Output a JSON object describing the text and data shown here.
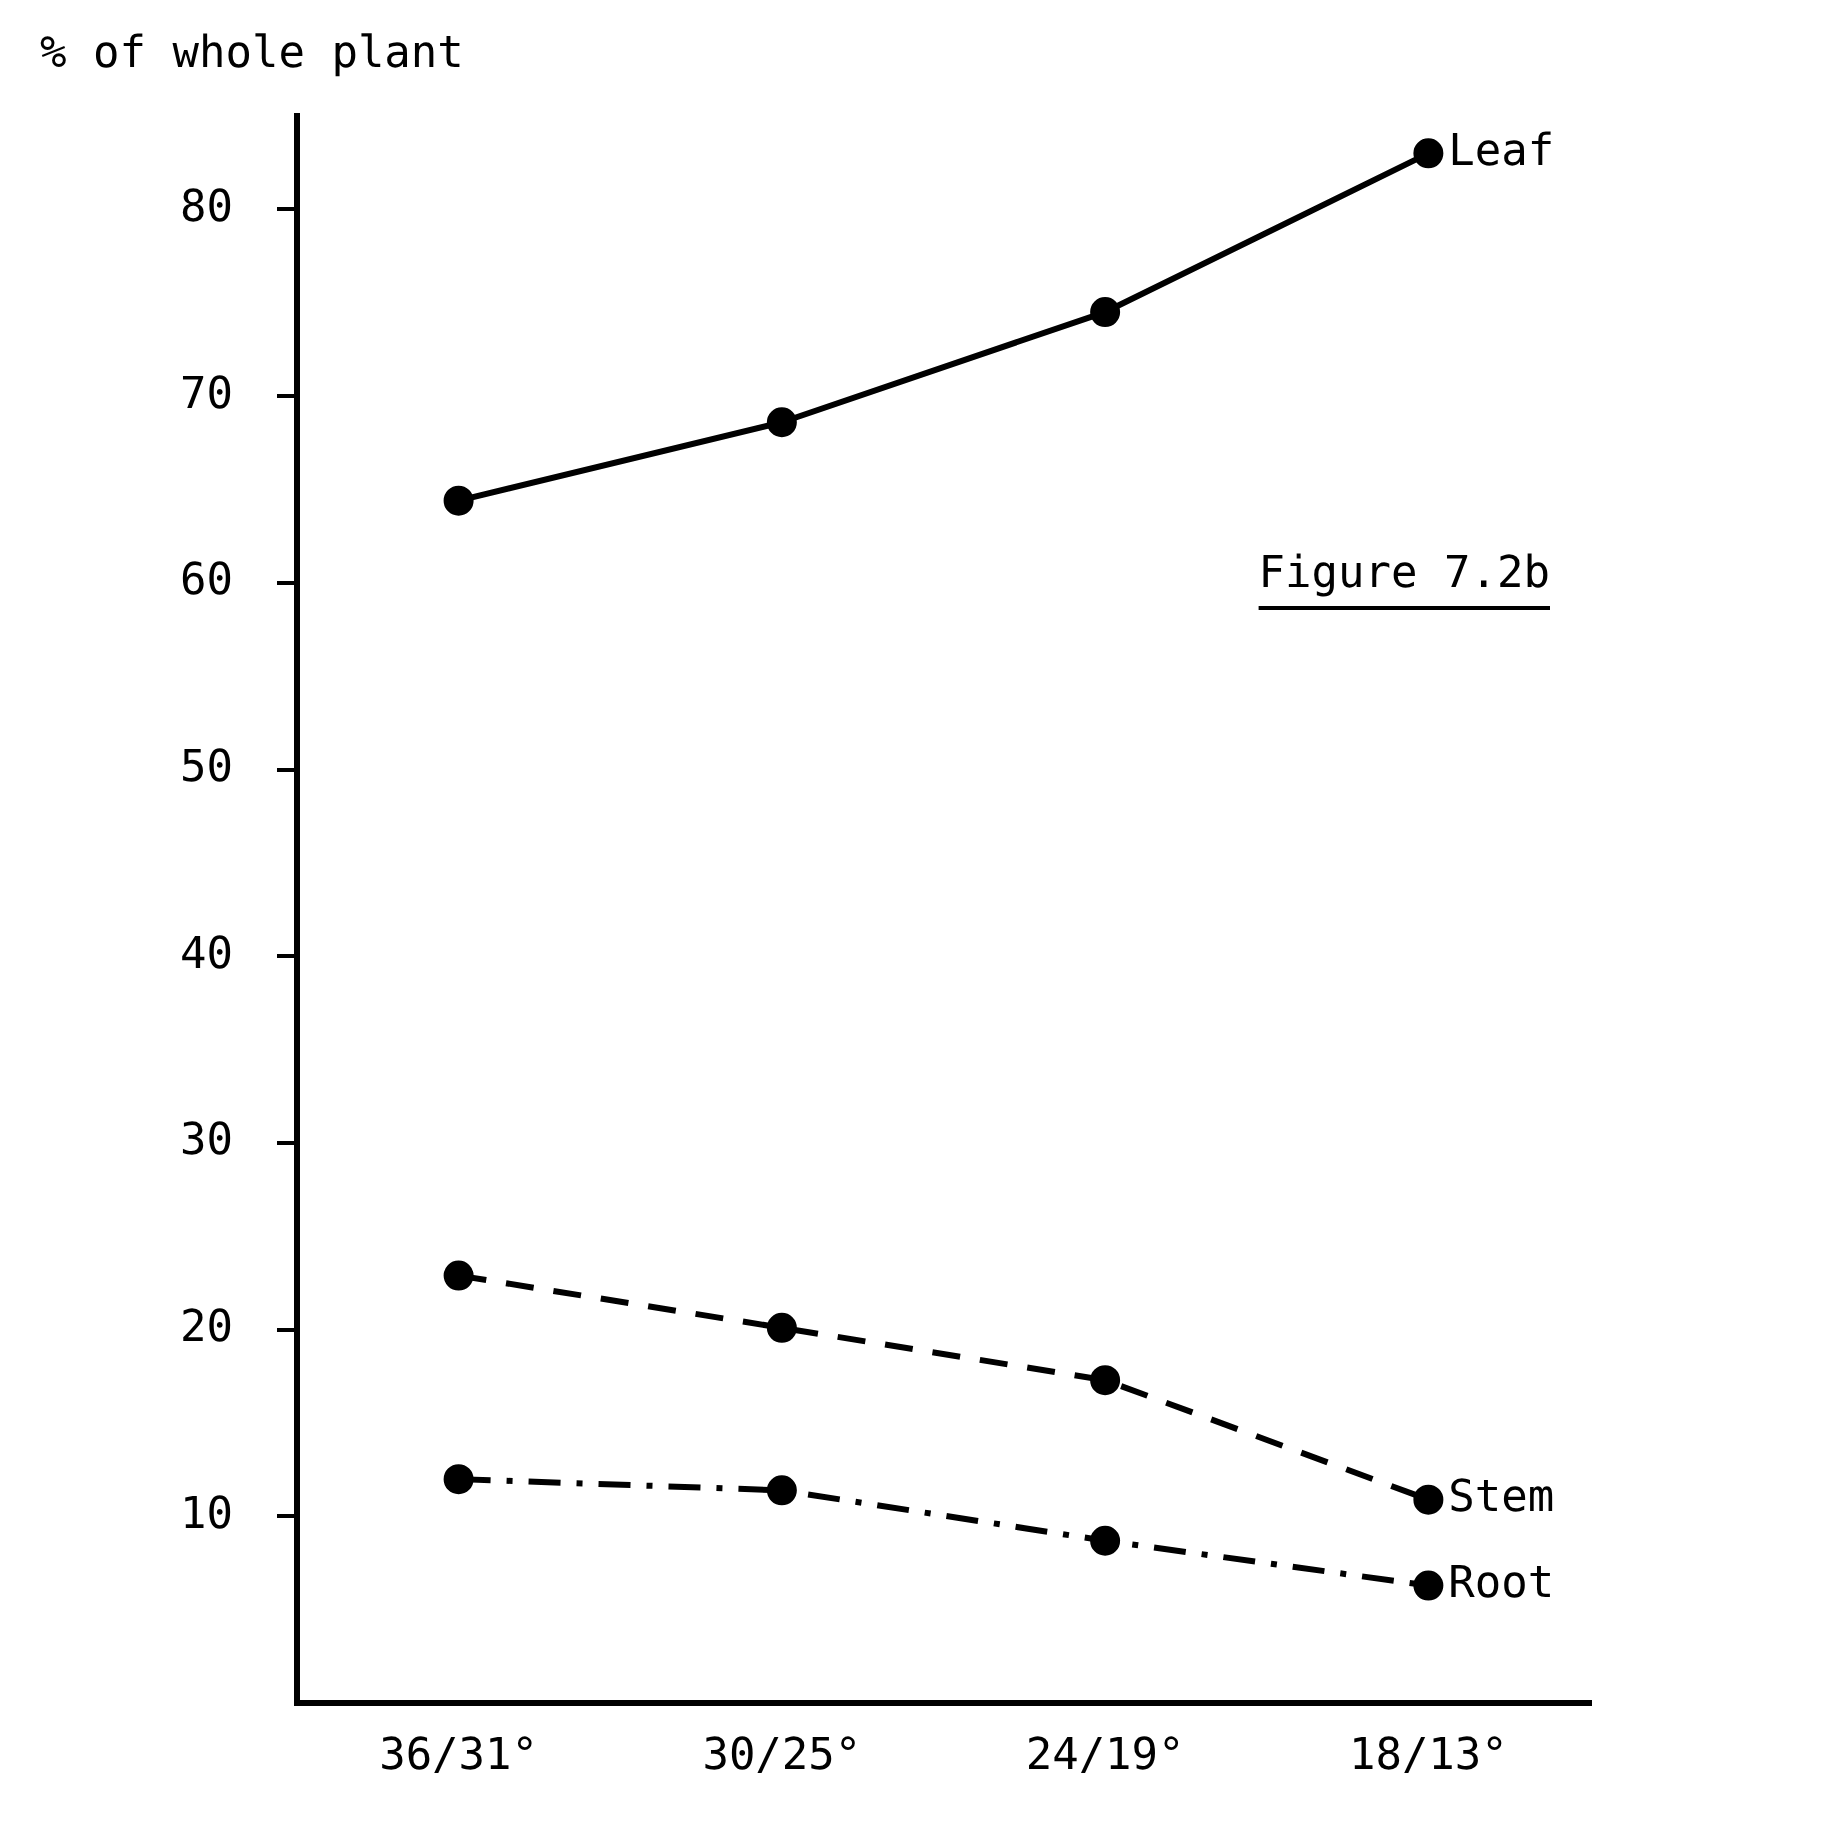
{
  "chart_data": {
    "type": "line",
    "ylabel": "% of whole plant",
    "annotations": [
      "Figure 7.2b"
    ],
    "categories": [
      "36/31°",
      "30/25°",
      "24/19°",
      "18/13°"
    ],
    "series": [
      {
        "name": "Leaf",
        "color": "#000000",
        "line_style": "solid",
        "values": [
          64.4,
          68.6,
          74.5,
          83
        ]
      },
      {
        "name": "Stem",
        "color": "#000000",
        "line_style": "dashed",
        "values": [
          22.9,
          20.1,
          17.3,
          10.9
        ]
      },
      {
        "name": "Root",
        "color": "#000000",
        "line_style": "dotted",
        "values": [
          12.0,
          11.4,
          8.7,
          6.3
        ]
      }
    ],
    "ylim": [
      0,
      85
    ],
    "yticks": [
      10,
      20,
      30,
      40,
      50,
      60,
      70,
      80
    ],
    "grid": false,
    "legend": false,
    "marker": "circle"
  }
}
